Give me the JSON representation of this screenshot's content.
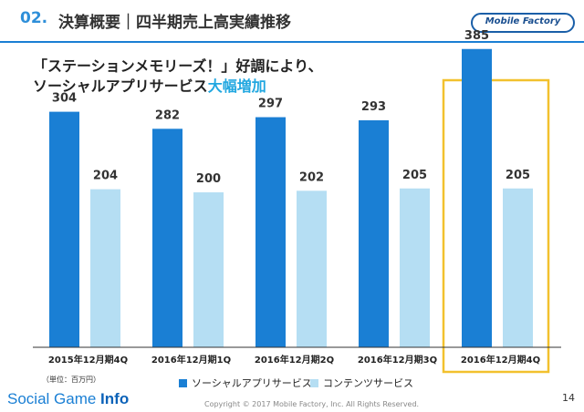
{
  "header": {
    "number": "02.",
    "title": "決算概要｜四半期売上高実績推移",
    "logo": "Mobile Factory"
  },
  "headline": {
    "line1": "「ステーションメモリーズ！」好調により、",
    "line2_prefix": "ソーシャルアプリサービス",
    "line2_highlight": "大幅増加"
  },
  "unit_note": "（単位：百万円）",
  "colors": {
    "social": "#1a7fd4",
    "contents": "#b5def3",
    "highlight_box": "#f2c12e",
    "accent": "#21a7e0"
  },
  "chart_data": {
    "type": "bar",
    "categories": [
      "2015年12月期4Q",
      "2016年12月期1Q",
      "2016年12月期2Q",
      "2016年12月期3Q",
      "2016年12月期4Q"
    ],
    "series": [
      {
        "name": "ソーシャルアプリサービス",
        "values": [
          304,
          282,
          297,
          293,
          385
        ]
      },
      {
        "name": "コンテンツサービス",
        "values": [
          204,
          200,
          202,
          205,
          205
        ]
      }
    ],
    "ylim": [
      0,
      420
    ],
    "data_labels": true,
    "grid": false,
    "legend": "bottom",
    "highlighted_category": "2016年12月期4Q"
  },
  "footer": {
    "brand_light": "Social Game ",
    "brand_bold": "Info",
    "copyright": "Copyright © 2017 Mobile Factory, Inc. All Rights Reserved.",
    "page": "14"
  }
}
